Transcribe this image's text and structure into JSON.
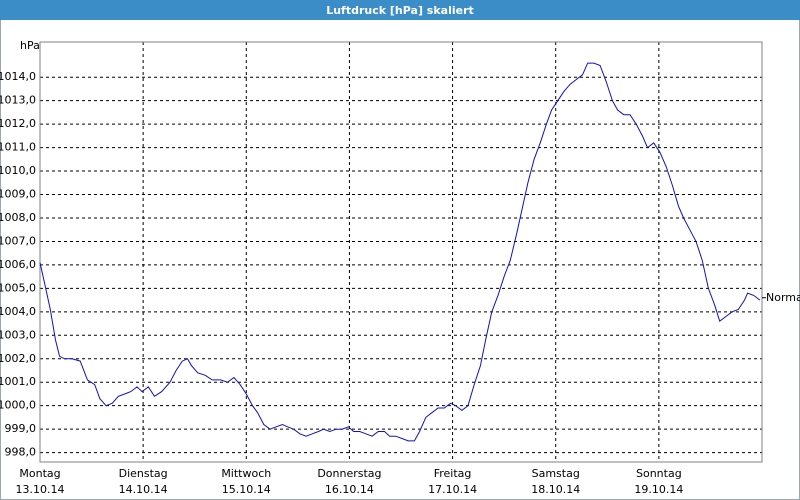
{
  "chart_data": {
    "type": "line",
    "title": "Luftdruck [hPa] skaliert",
    "y_unit": "hPa",
    "color": "#1010c8",
    "grid": true,
    "xlim": [
      0,
      7
    ],
    "ylim": [
      997.6,
      1015.5
    ],
    "xticks": [
      {
        "value": 0,
        "label": "Montag",
        "date": "13.10.14"
      },
      {
        "value": 1,
        "label": "Dienstag",
        "date": "14.10.14"
      },
      {
        "value": 2,
        "label": "Mittwoch",
        "date": "15.10.14"
      },
      {
        "value": 3,
        "label": "Donnerstag",
        "date": "16.10.14"
      },
      {
        "value": 4,
        "label": "Freitag",
        "date": "17.10.14"
      },
      {
        "value": 5,
        "label": "Samstag",
        "date": "18.10.14"
      },
      {
        "value": 6,
        "label": "Sonntag",
        "date": "19.10.14"
      }
    ],
    "yticks": [
      {
        "value": 998,
        "label": "998,0"
      },
      {
        "value": 999,
        "label": "999,0"
      },
      {
        "value": 1000,
        "label": "1000,0"
      },
      {
        "value": 1001,
        "label": "1001,0"
      },
      {
        "value": 1002,
        "label": "1002,0"
      },
      {
        "value": 1003,
        "label": "1003,0"
      },
      {
        "value": 1004,
        "label": "1004,0"
      },
      {
        "value": 1005,
        "label": "1005,0"
      },
      {
        "value": 1006,
        "label": "1006,0"
      },
      {
        "value": 1007,
        "label": "1007,0"
      },
      {
        "value": 1008,
        "label": "1008,0"
      },
      {
        "value": 1009,
        "label": "1009,0"
      },
      {
        "value": 1010,
        "label": "1010,0"
      },
      {
        "value": 1011,
        "label": "1011,0"
      },
      {
        "value": 1012,
        "label": "1012,0"
      },
      {
        "value": 1013,
        "label": "1013,0"
      },
      {
        "value": 1014,
        "label": "1014,0"
      }
    ],
    "annotation": {
      "text": "Normal",
      "value": 1004.6
    },
    "x": [
      0,
      0.05,
      0.1,
      0.15,
      0.19,
      0.24,
      0.31,
      0.39,
      0.46,
      0.53,
      0.58,
      0.64,
      0.7,
      0.76,
      0.82,
      0.88,
      0.94,
      0.99,
      1.05,
      1.11,
      1.18,
      1.26,
      1.32,
      1.38,
      1.43,
      1.47,
      1.53,
      1.6,
      1.67,
      1.75,
      1.82,
      1.88,
      1.94,
      2.0,
      2.06,
      2.11,
      2.17,
      2.23,
      2.29,
      2.35,
      2.4,
      2.46,
      2.52,
      2.58,
      2.64,
      2.7,
      2.75,
      2.81,
      2.87,
      2.93,
      2.99,
      3.04,
      3.1,
      3.16,
      3.22,
      3.28,
      3.34,
      3.39,
      3.45,
      3.51,
      3.57,
      3.63,
      3.68,
      3.74,
      3.8,
      3.86,
      3.92,
      3.98,
      4.03,
      4.09,
      4.15,
      4.21,
      4.27,
      4.32,
      4.38,
      4.44,
      4.5,
      4.56,
      4.62,
      4.67,
      4.73,
      4.79,
      4.85,
      4.91,
      4.96,
      5.02,
      5.08,
      5.14,
      5.2,
      5.26,
      5.31,
      5.37,
      5.43,
      5.49,
      5.55,
      5.6,
      5.66,
      5.72,
      5.78,
      5.84,
      5.89,
      5.95,
      6.01,
      6.07,
      6.13,
      6.19,
      6.24,
      6.3,
      6.36,
      6.42,
      6.48,
      6.54,
      6.59,
      6.65,
      6.71,
      6.77,
      6.83,
      6.86,
      6.92,
      6.98
    ],
    "values": [
      1006.1,
      1005.1,
      1004.1,
      1002.8,
      1002.1,
      1002.0,
      1002.0,
      1001.9,
      1001.1,
      1000.9,
      1000.3,
      1000.0,
      1000.1,
      1000.4,
      1000.5,
      1000.6,
      1000.8,
      1000.6,
      1000.8,
      1000.4,
      1000.6,
      1001.0,
      1001.5,
      1001.9,
      1002.0,
      1001.7,
      1001.4,
      1001.3,
      1001.1,
      1001.1,
      1001.0,
      1001.2,
      1000.9,
      1000.5,
      1000.0,
      999.7,
      999.2,
      999.0,
      999.1,
      999.2,
      999.1,
      999.0,
      998.8,
      998.7,
      998.8,
      998.9,
      999.0,
      998.9,
      999.0,
      999.0,
      999.1,
      998.9,
      998.9,
      998.8,
      998.7,
      998.9,
      998.9,
      998.7,
      998.7,
      998.6,
      998.5,
      998.5,
      998.9,
      999.5,
      999.7,
      999.9,
      999.9,
      1000.1,
      1000.0,
      999.8,
      1000.0,
      1000.9,
      1001.7,
      1002.8,
      1004.0,
      1004.7,
      1005.5,
      1006.2,
      1007.3,
      1008.3,
      1009.5,
      1010.5,
      1011.2,
      1012.0,
      1012.6,
      1013.0,
      1013.4,
      1013.7,
      1013.9,
      1014.1,
      1014.6,
      1014.6,
      1014.5,
      1013.8,
      1013.0,
      1012.6,
      1012.4,
      1012.4,
      1012.0,
      1011.5,
      1011.0,
      1011.2,
      1010.8,
      1010.2,
      1009.4,
      1008.5,
      1008.0,
      1007.5,
      1007.0,
      1006.2,
      1005.0,
      1004.3,
      1003.6,
      1003.8,
      1004.0,
      1004.1,
      1004.5,
      1004.8,
      1004.7,
      1004.5
    ]
  }
}
